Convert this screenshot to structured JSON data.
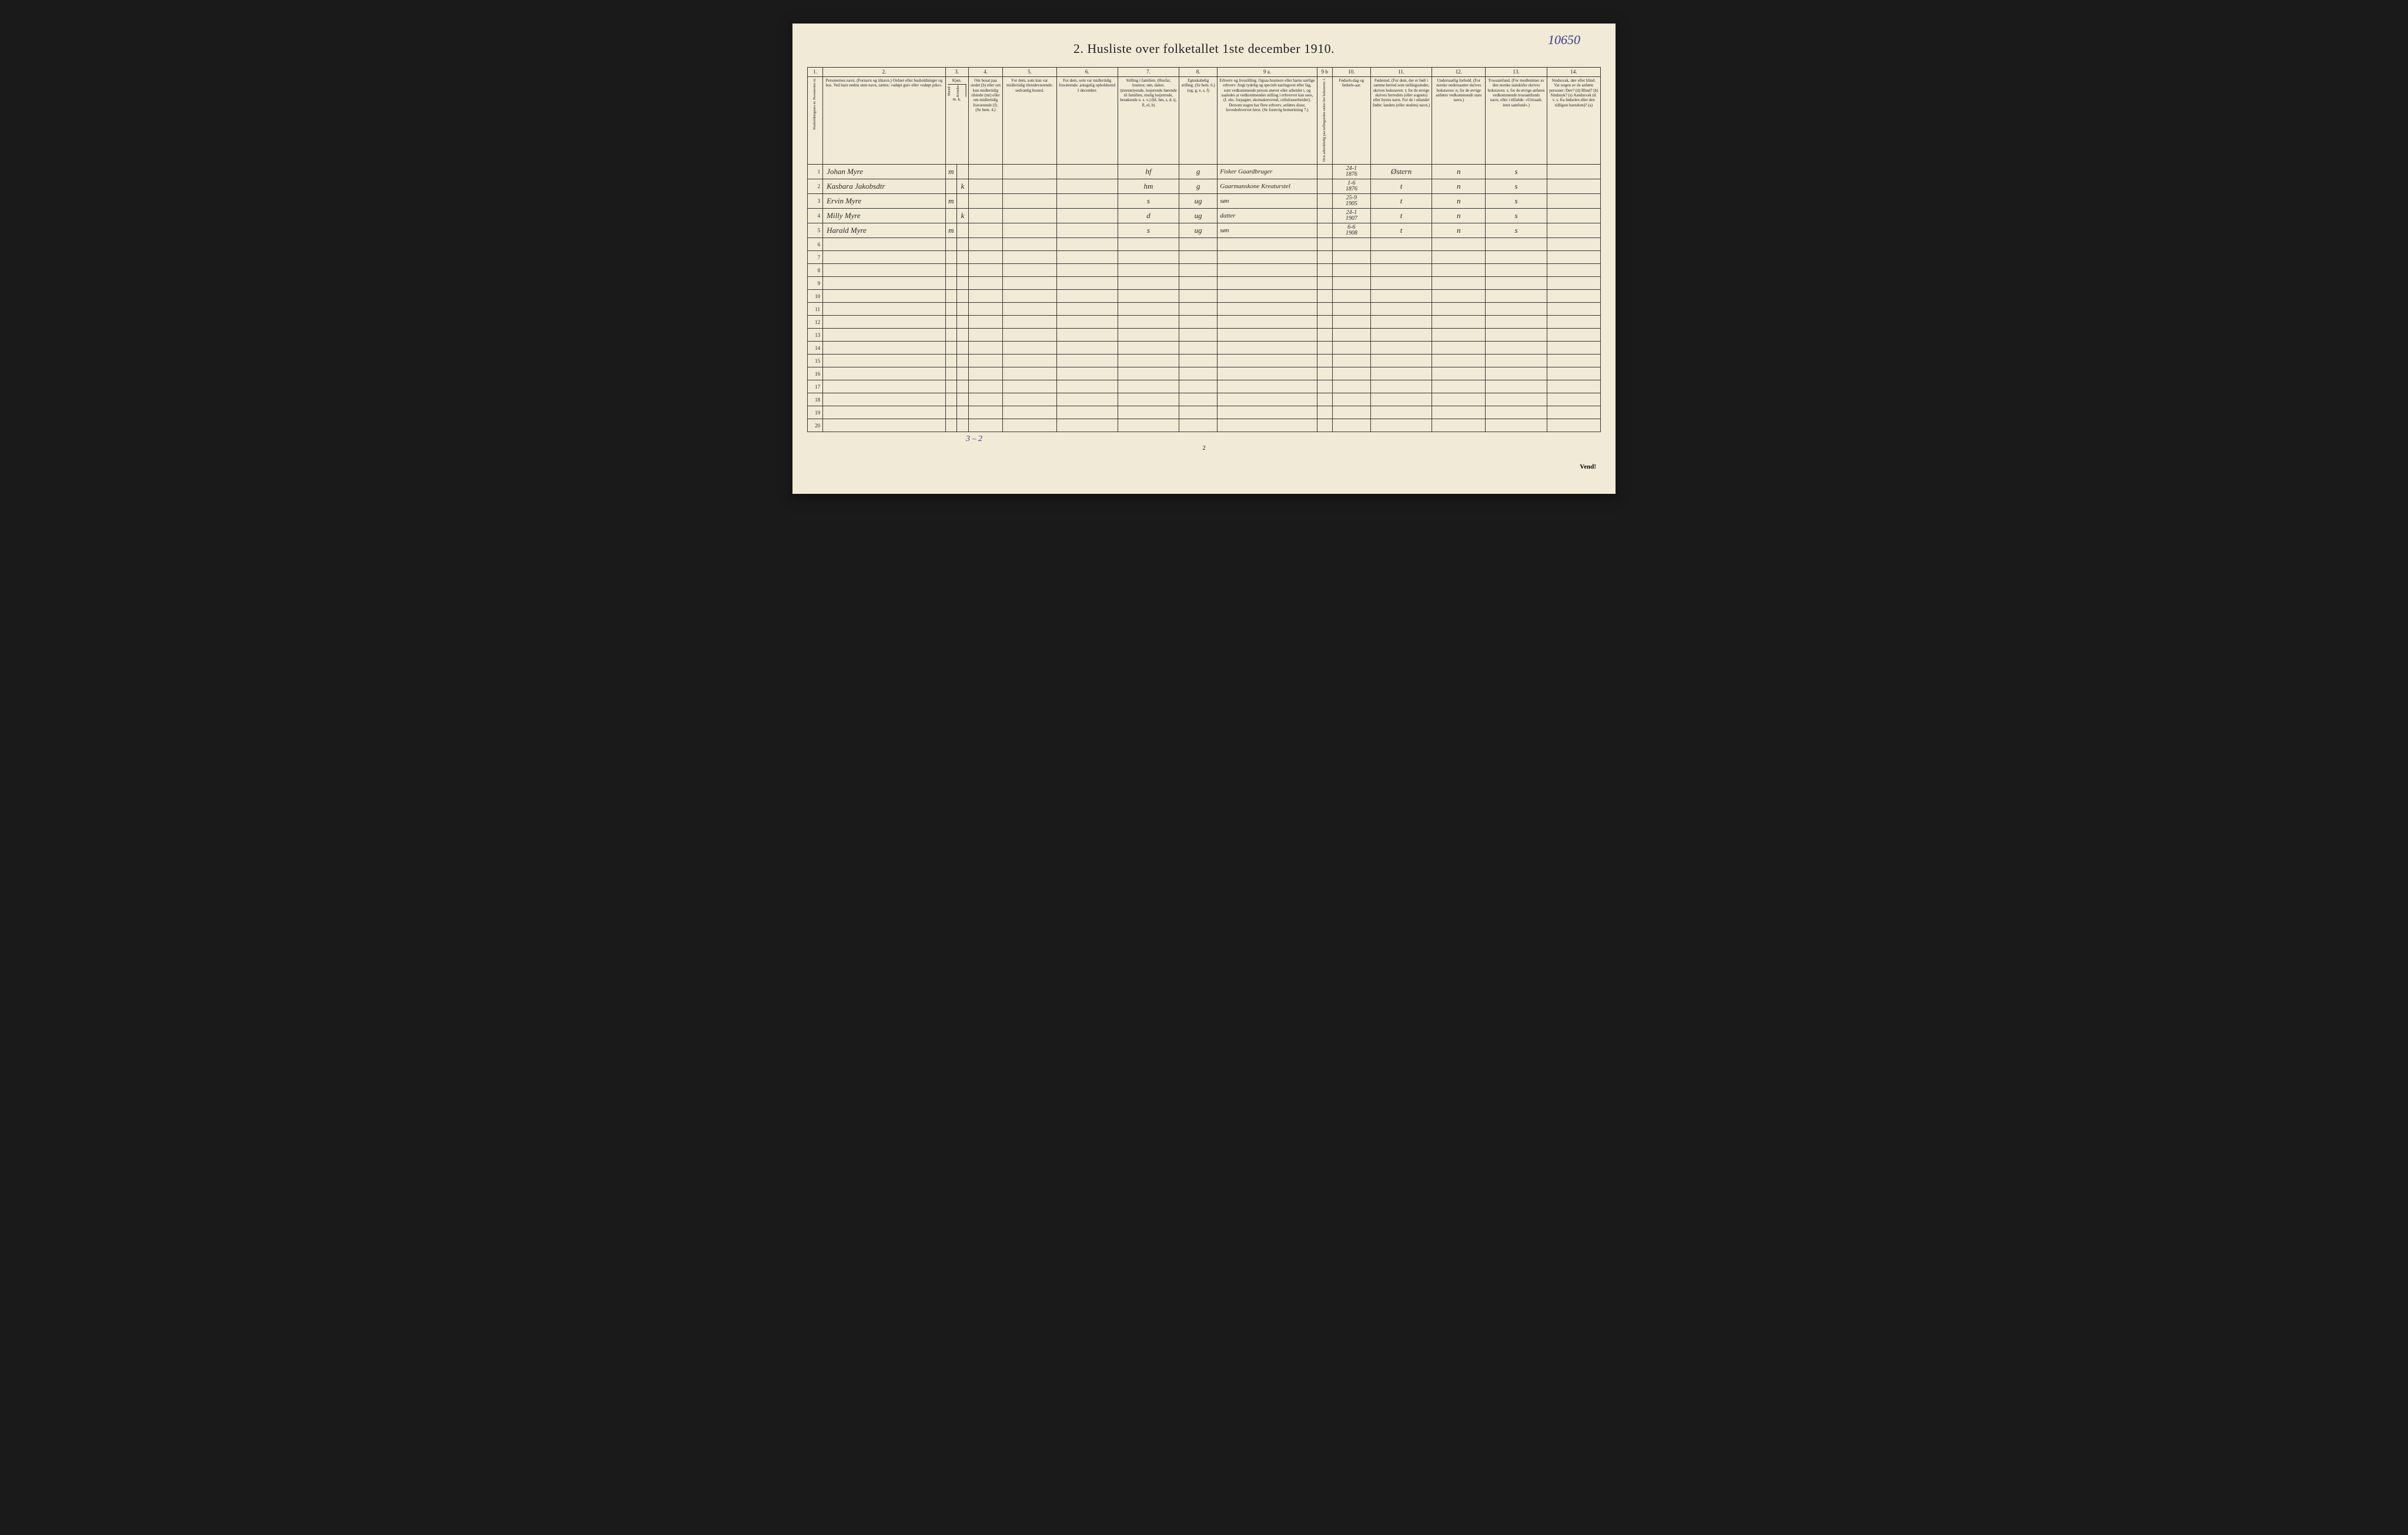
{
  "handwritten_page_number": "10650",
  "title": "2.  Husliste over folketallet 1ste december 1910.",
  "column_numbers": [
    "1.",
    "2.",
    "3.",
    "4.",
    "5.",
    "6.",
    "7.",
    "8.",
    "9 a.",
    "9 b",
    "10.",
    "11.",
    "12.",
    "13.",
    "14."
  ],
  "column_widths_pct": [
    2,
    16,
    1.5,
    1.5,
    4.5,
    7,
    8,
    8,
    5,
    13,
    2,
    5,
    8,
    7,
    8,
    7
  ],
  "headers": {
    "col1": "Husholdningenes nr.\nPersonernes nr.",
    "col2": "Personernes navn.\n(Fornavn og tilnavn.)\nOrdnet efter husholdninger og hus.\nVed barn endnu uten navn, sættes: «udøpt gut» eller «udøpt pike».",
    "col3a": "Kjøn.",
    "col3b_m": "Mænd.",
    "col3b_k": "Kvinder.",
    "col3c": "m. k.",
    "col4": "Om bosat paa stedet (b) eller om kun midlertidig tilstede (mt) eller om midlertidig fraværende (f). (Se bem. 4.)",
    "col5": "For dem, som kun var midlertidig tilstedeværende:\nsedvanlig bosted.",
    "col6": "For dem, som var midlertidig fraværende:\nantagelig opholdssted 1 december.",
    "col7": "Stilling i familien.\n(Husfar, husmor, søn, datter, tjenestetyende, losjerende hørende til familien, enslig losjerende, besøkende o. s. v.)\n(hf, hm, s, d, tj, fl, el, b)",
    "col8": "Egteskabelig stilling.\n(Se bem. 6.)\n(ug, g, e, s, f)",
    "col9a": "Erhverv og livsstilling.\nOgsaa husmors eller barns særlige erhverv. Angi tydelig og specielt næringsvei eller fag, som vedkommende person utøver eller arbeider i, og saaledes at vedkommendes stilling i erhvervet kan sees, (f. eks. forpagter, skomakersvend, celluloseerbeider). Dersom nogen har flere erhverv, anføres disse, hovederhvervet først.\n(Se forøvrig bemerkning 7.)",
    "col9b": "Hvis arbeidsledig paa tællingstiden sættes her bokstaven: l.",
    "col10": "Fødsels-dag og fødsels-aar.",
    "col11": "Fødested.\n(For dem, der er født i samme herred som tællingsstedet, skrives bokstaven: t; for de øvrige skrives herredets (eller sognets) eller byens navn. For de i utlandet fødte: landets (eller stedets) navn.)",
    "col12": "Undersaatlig forhold.\n(For norske undersaatter skrives bokstaven: n; for de øvrige anføres vedkommende stats navn.)",
    "col13": "Trossamfund.\n(For medlemmer av den norske statskirke skrives bokstaven: s; for de øvrige anføres vedkommende trossamfunds navn, eller i tilfælde: «Uttraadt, intet samfund».)",
    "col14": "Sindssvak, døv eller blind.\nVar nogen av de anførte personer:\nDøv?      (d)\nBlind?    (b)\nSindssyk? (s)\nAandssvak (d. v. s. fra fødselen eller den tidligste barndom)? (a)"
  },
  "rows": [
    {
      "num": "1",
      "name": "Johan Myre",
      "sex": "m",
      "col4": "",
      "col5": "",
      "col6": "",
      "family": "hf",
      "marital": "g",
      "occupation": "Fisker Gaardbruger",
      "col9b": "",
      "birth": "24-1\n1876",
      "birthplace": "Østern",
      "nationality": "n",
      "faith": "s",
      "col14": ""
    },
    {
      "num": "2",
      "name": "Kasbara Jakobsdtr",
      "sex": "k",
      "col4": "",
      "col5": "",
      "col6": "",
      "family": "hm",
      "marital": "g",
      "occupation": "Gaarmanskone Kreaturstel",
      "col9b": "",
      "birth": "1-6\n1876",
      "birthplace": "t",
      "nationality": "n",
      "faith": "s",
      "col14": ""
    },
    {
      "num": "3",
      "name": "Ervin Myre",
      "sex": "m",
      "col4": "",
      "col5": "",
      "col6": "",
      "family": "s",
      "marital": "ug",
      "occupation": "søn",
      "col9b": "",
      "birth": "25-9\n1905",
      "birthplace": "t",
      "nationality": "n",
      "faith": "s",
      "col14": ""
    },
    {
      "num": "4",
      "name": "Milly Myre",
      "sex": "k",
      "col4": "",
      "col5": "",
      "col6": "",
      "family": "d",
      "marital": "ug",
      "occupation": "datter",
      "col9b": "",
      "birth": "24-1\n1907",
      "birthplace": "t",
      "nationality": "n",
      "faith": "s",
      "col14": ""
    },
    {
      "num": "5",
      "name": "Harald Myre",
      "sex": "m",
      "col4": "",
      "col5": "",
      "col6": "",
      "family": "s",
      "marital": "ug",
      "occupation": "søn",
      "col9b": "",
      "birth": "6-6\n1908",
      "birthplace": "t",
      "nationality": "n",
      "faith": "s",
      "col14": ""
    }
  ],
  "empty_row_numbers": [
    "6",
    "7",
    "8",
    "9",
    "10",
    "11",
    "12",
    "13",
    "14",
    "15",
    "16",
    "17",
    "18",
    "19",
    "20"
  ],
  "footer_annotation": "3 – 2",
  "footer_page_num": "2",
  "footer_right": "Vend!",
  "colors": {
    "paper": "#f0ead6",
    "ink": "#222222",
    "handwriting": "#2a2a2a",
    "blue_pencil": "#3a3a8f",
    "border": "#333333",
    "background": "#1a1a1a"
  },
  "fonts": {
    "title_size_pt": 22,
    "header_size_pt": 7,
    "colnum_size_pt": 9,
    "body_size_pt": 13
  }
}
